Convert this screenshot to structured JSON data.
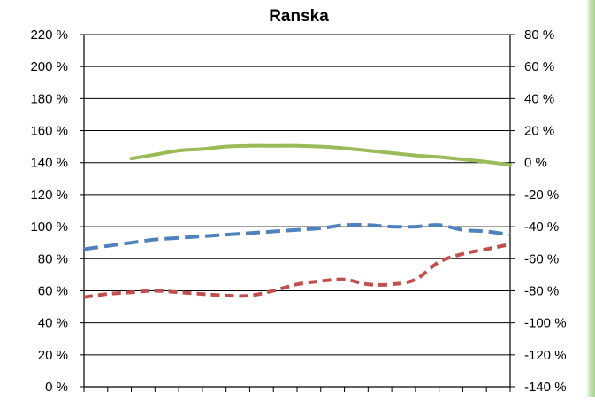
{
  "chart_data": {
    "type": "line",
    "title": "Ranska",
    "xlabel": "",
    "ylabel": "",
    "x": [
      0,
      1,
      2,
      3,
      4,
      5,
      6,
      7,
      8,
      9,
      10,
      11,
      12,
      13,
      14,
      15,
      16,
      17,
      18
    ],
    "left_axis": {
      "ylim": [
        0,
        220
      ],
      "ticks": [
        0,
        20,
        40,
        60,
        80,
        100,
        120,
        140,
        160,
        180,
        200,
        220
      ],
      "tick_labels": [
        "0 %",
        "20 %",
        "40 %",
        "60 %",
        "80 %",
        "100 %",
        "120 %",
        "140 %",
        "160 %",
        "180 %",
        "200 %",
        "220 %"
      ]
    },
    "right_axis": {
      "ylim": [
        -140,
        80
      ],
      "ticks": [
        -140,
        -120,
        -100,
        -80,
        -60,
        -40,
        -20,
        0,
        20,
        40,
        60,
        80
      ],
      "tick_labels": [
        "-140 %",
        "-120 %",
        "-100 %",
        "-80 %",
        "-60 %",
        "-40 %",
        "-20 %",
        "0 %",
        "20 %",
        "40 %",
        "60 %",
        "80 %"
      ]
    },
    "grid": "horizontal",
    "legend": "none",
    "series": [
      {
        "style": "solid",
        "axis": "right",
        "color": "#9bbb59",
        "x": [
          2,
          3,
          4,
          5,
          6,
          7,
          8,
          9,
          10,
          11,
          12,
          13,
          14,
          15,
          16,
          17,
          18
        ],
        "values": [
          2.5,
          5,
          7.5,
          8.5,
          10,
          10.5,
          10.5,
          10.5,
          10,
          9,
          7.5,
          6,
          4.5,
          3.5,
          2,
          0.5,
          -1.5
        ]
      },
      {
        "style": "dashed",
        "axis": "left",
        "color": "#4f81bd",
        "x": [
          0,
          1,
          2,
          3,
          4,
          5,
          6,
          7,
          8,
          9,
          10,
          11,
          12,
          13,
          14,
          15,
          16,
          17,
          18
        ],
        "values": [
          86,
          88,
          90,
          92,
          93,
          94,
          95,
          96,
          97,
          98,
          99,
          101,
          101,
          100,
          100,
          101,
          98,
          97,
          95
        ]
      },
      {
        "style": "dashed",
        "axis": "left",
        "color": "#c0504d",
        "x": [
          0,
          1,
          2,
          3,
          4,
          5,
          6,
          7,
          8,
          9,
          10,
          11,
          12,
          13,
          14,
          15,
          16,
          17,
          18
        ],
        "values": [
          56,
          58,
          59,
          60,
          59,
          58,
          57,
          57,
          60,
          64,
          66,
          67,
          64,
          64,
          67,
          78,
          83,
          86,
          89
        ]
      }
    ],
    "colors": {
      "axis": "#000000",
      "grid": "#000000",
      "text": "#000000"
    }
  }
}
